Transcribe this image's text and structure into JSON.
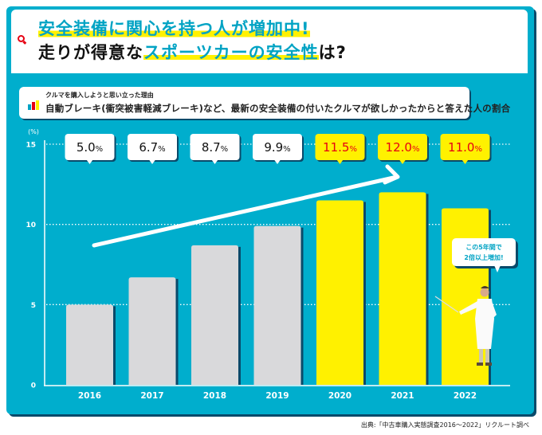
{
  "header": {
    "title_line1": "安全装備に関心を持つ人が増加中!",
    "title_line2_prefix": "走りが得意な",
    "title_line2_highlight": "スポーツカーの安全性",
    "title_line2_suffix": "は?",
    "icon": "search-icon"
  },
  "legend": {
    "icon": "bar-chart-icon",
    "small_label": "クルマを購入しようと思い立った理由",
    "main_label": "自動ブレーキ(衝突被害軽減ブレーキ)など、最新の安全装備の付いたクルマが欲しかったからと答えた人の割合"
  },
  "colors": {
    "background": "#00aecd",
    "bar_past": "#d9d9db",
    "bar_recent": "#fff100",
    "label_recent_text": "#e60012",
    "label_past_text": "#111111"
  },
  "callout": {
    "line1": "この5年間で",
    "line2": "2倍以上増加!"
  },
  "source": "出典:「中古車購入実態調査2016～2022」リクルート調べ",
  "chart_data": {
    "type": "bar",
    "title": "クルマを購入しようと思い立った理由",
    "ylabel": "(%)",
    "xlabel": "",
    "ylim": [
      0,
      15
    ],
    "yticks": [
      "0",
      "5",
      "10",
      "15"
    ],
    "ytick_values": [
      0,
      5,
      10,
      15
    ],
    "grid": "dotted at 5, 10, 15",
    "categories": [
      "2016",
      "2017",
      "2018",
      "2019",
      "2020",
      "2021",
      "2022"
    ],
    "values": [
      5.0,
      6.7,
      8.7,
      9.9,
      11.5,
      12.0,
      11.0
    ],
    "value_labels": [
      {
        "num": "5.0",
        "unit": "%"
      },
      {
        "num": "6.7",
        "unit": "%"
      },
      {
        "num": "8.7",
        "unit": "%"
      },
      {
        "num": "9.9",
        "unit": "%"
      },
      {
        "num": "11.5",
        "unit": "%"
      },
      {
        "num": "12.0",
        "unit": "%"
      },
      {
        "num": "11.0",
        "unit": "%"
      }
    ],
    "highlighted_from_index": 4,
    "annotation": "upward trend arrow"
  }
}
